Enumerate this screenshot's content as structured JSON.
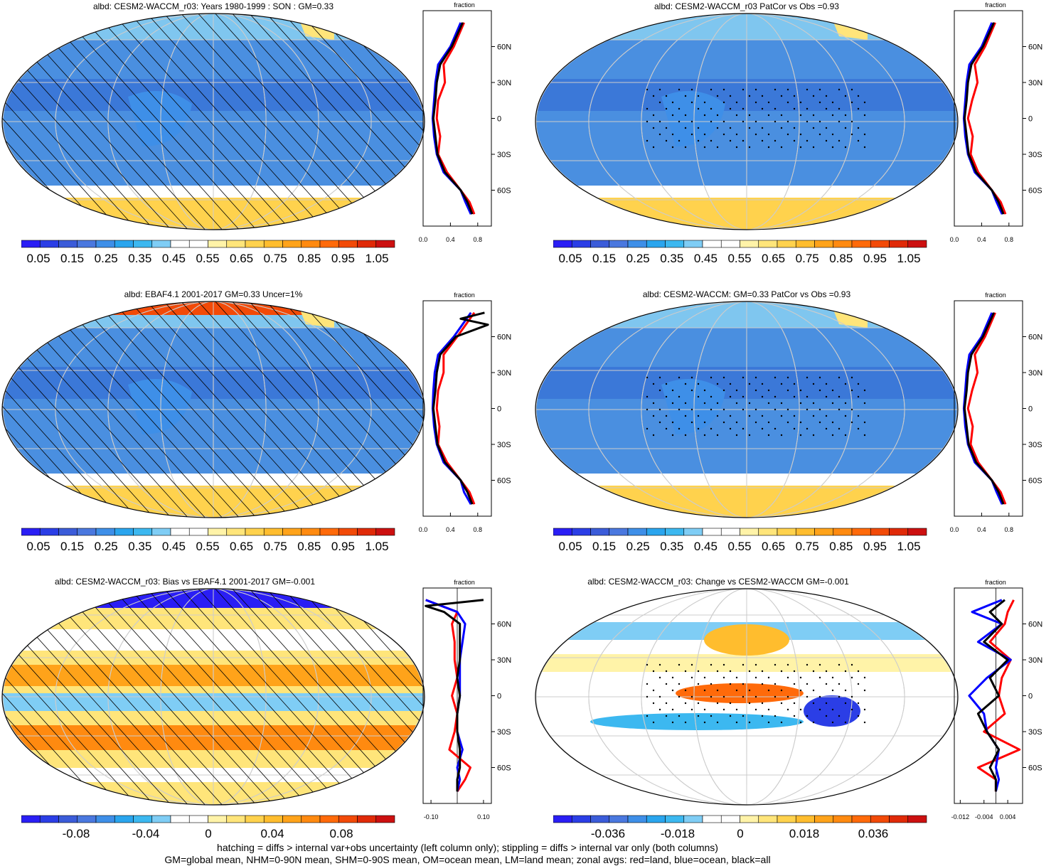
{
  "panels": [
    {
      "id": "p1",
      "title": "albd: CESM2-WACCM_r03: Years 1980-1999 : SON : GM=0.33",
      "style": "abs",
      "hatch": true
    },
    {
      "id": "p2",
      "title": "albd: CESM2-WACCM_r03 PatCor vs Obs =0.93",
      "style": "abs",
      "hatch": false
    },
    {
      "id": "p3",
      "title": "albd: EBAF4.1 2001-2017 GM=0.33 Uncer=1%",
      "style": "abs",
      "hatch": true
    },
    {
      "id": "p4",
      "title": "albd: CESM2-WACCM: GM=0.33 PatCor vs Obs =0.93",
      "style": "abs",
      "hatch": false
    },
    {
      "id": "p5",
      "title": "albd: CESM2-WACCM_r03: Bias vs EBAF4.1 2001-2017  GM=-0.001",
      "style": "bias",
      "hatch": true
    },
    {
      "id": "p6",
      "title": "albd: CESM2-WACCM_r03: Change vs CESM2-WACCM GM=-0.001",
      "style": "change",
      "hatch": false
    }
  ],
  "zonal_axis": {
    "title": "fraction",
    "lat_ticks": [
      "60N",
      "30N",
      "0",
      "30S",
      "60S"
    ],
    "lat_values": [
      60,
      30,
      0,
      -30,
      -60
    ],
    "abs_ticks": [
      "0.0",
      "0.4",
      "0.8"
    ],
    "bias_ticks": [
      "-0.10",
      "0.10"
    ],
    "change_ticks": [
      "-0.012",
      "-0.004",
      "0.004"
    ]
  },
  "colorbars": {
    "abs_labels": [
      "0.05",
      "0.15",
      "0.25",
      "0.35",
      "0.45",
      "0.55",
      "0.65",
      "0.75",
      "0.85",
      "0.95",
      "1.05"
    ],
    "bias_labels": [
      "-0.08",
      "-0.04",
      "0",
      "0.04",
      "0.08"
    ],
    "change_labels": [
      "-0.036",
      "-0.018",
      "0",
      "0.018",
      "0.036"
    ],
    "colors": [
      "#2a1ef5",
      "#2b3ee6",
      "#3b5cd9",
      "#4a78df",
      "#3e8fe8",
      "#2aa5ee",
      "#3cb8f0",
      "#7fcdf5",
      "#ffffff",
      "#ffffff",
      "#fff3a8",
      "#ffe57a",
      "#ffd24d",
      "#ffbd2e",
      "#ffa31a",
      "#ff8a10",
      "#ff6a0a",
      "#f24a08",
      "#e02a08",
      "#cc1010"
    ]
  },
  "chart_data": [
    {
      "type": "heatmap",
      "panel": "p1",
      "map": "global albedo field",
      "zonal_series": [
        {
          "name": "land",
          "color": "#ff0000",
          "lat": [
            80,
            60,
            45,
            30,
            15,
            0,
            -15,
            -30,
            -45,
            -60,
            -70,
            -80
          ],
          "values": [
            0.6,
            0.45,
            0.3,
            0.32,
            0.22,
            0.2,
            0.25,
            0.22,
            0.35,
            0.55,
            0.68,
            0.75
          ]
        },
        {
          "name": "ocean",
          "color": "#0000ff",
          "lat": [
            80,
            60,
            45,
            30,
            15,
            0,
            -15,
            -30,
            -45,
            -60,
            -70,
            -80
          ],
          "values": [
            0.55,
            0.4,
            0.22,
            0.18,
            0.16,
            0.14,
            0.16,
            0.2,
            0.3,
            0.55,
            0.62,
            0.7
          ]
        },
        {
          "name": "all",
          "color": "#000000",
          "lat": [
            80,
            60,
            45,
            30,
            15,
            0,
            -15,
            -30,
            -45,
            -60,
            -70,
            -80
          ],
          "values": [
            0.58,
            0.42,
            0.25,
            0.2,
            0.18,
            0.15,
            0.18,
            0.21,
            0.32,
            0.55,
            0.65,
            0.72
          ]
        }
      ]
    },
    {
      "type": "heatmap",
      "panel": "p2",
      "map": "global albedo field",
      "zonal_series": [
        {
          "name": "land",
          "color": "#ff0000",
          "lat": [
            80,
            60,
            45,
            30,
            15,
            0,
            -15,
            -30,
            -45,
            -60,
            -70,
            -80
          ],
          "values": [
            0.6,
            0.45,
            0.3,
            0.34,
            0.26,
            0.2,
            0.27,
            0.24,
            0.35,
            0.55,
            0.68,
            0.75
          ]
        },
        {
          "name": "ocean",
          "color": "#0000ff",
          "lat": [
            80,
            60,
            45,
            30,
            15,
            0,
            -15,
            -30,
            -45,
            -60,
            -70,
            -80
          ],
          "values": [
            0.55,
            0.4,
            0.22,
            0.18,
            0.16,
            0.14,
            0.16,
            0.2,
            0.3,
            0.55,
            0.62,
            0.7
          ]
        },
        {
          "name": "all",
          "color": "#000000",
          "lat": [
            80,
            60,
            45,
            30,
            15,
            0,
            -15,
            -30,
            -45,
            -60,
            -70,
            -80
          ],
          "values": [
            0.58,
            0.42,
            0.25,
            0.2,
            0.18,
            0.15,
            0.18,
            0.21,
            0.32,
            0.55,
            0.65,
            0.72
          ]
        }
      ]
    },
    {
      "type": "heatmap",
      "panel": "p3",
      "map": "global albedo field",
      "zonal_series": [
        {
          "name": "land",
          "color": "#ff0000",
          "lat": [
            80,
            60,
            45,
            30,
            15,
            0,
            -15,
            -30,
            -45,
            -60,
            -70,
            -80
          ],
          "values": [
            0.75,
            0.5,
            0.3,
            0.3,
            0.22,
            0.2,
            0.24,
            0.22,
            0.35,
            0.55,
            0.68,
            0.75
          ]
        },
        {
          "name": "ocean",
          "color": "#0000ff",
          "lat": [
            80,
            60,
            45,
            30,
            15,
            0,
            -15,
            -30,
            -45,
            -60,
            -70,
            -80
          ],
          "values": [
            0.7,
            0.45,
            0.22,
            0.17,
            0.15,
            0.14,
            0.16,
            0.2,
            0.3,
            0.55,
            0.6,
            0.7
          ]
        },
        {
          "name": "all",
          "color": "#000000",
          "lat": [
            80,
            75,
            70,
            60,
            45,
            30,
            15,
            0,
            -15,
            -30,
            -45,
            -60,
            -70,
            -80
          ],
          "values": [
            0.9,
            0.55,
            0.95,
            0.48,
            0.25,
            0.2,
            0.18,
            0.15,
            0.18,
            0.21,
            0.32,
            0.55,
            0.65,
            0.72
          ]
        }
      ]
    },
    {
      "type": "heatmap",
      "panel": "p4",
      "map": "global albedo field",
      "zonal_series": [
        {
          "name": "land",
          "color": "#ff0000",
          "lat": [
            80,
            60,
            45,
            30,
            15,
            0,
            -15,
            -30,
            -45,
            -60,
            -70,
            -80
          ],
          "values": [
            0.6,
            0.45,
            0.3,
            0.34,
            0.26,
            0.2,
            0.27,
            0.24,
            0.35,
            0.55,
            0.68,
            0.75
          ]
        },
        {
          "name": "ocean",
          "color": "#0000ff",
          "lat": [
            80,
            60,
            45,
            30,
            15,
            0,
            -15,
            -30,
            -45,
            -60,
            -70,
            -80
          ],
          "values": [
            0.55,
            0.4,
            0.22,
            0.18,
            0.16,
            0.14,
            0.16,
            0.2,
            0.3,
            0.55,
            0.62,
            0.7
          ]
        },
        {
          "name": "all",
          "color": "#000000",
          "lat": [
            80,
            60,
            45,
            30,
            15,
            0,
            -15,
            -30,
            -45,
            -60,
            -70,
            -80
          ],
          "values": [
            0.58,
            0.42,
            0.25,
            0.2,
            0.18,
            0.15,
            0.18,
            0.21,
            0.32,
            0.55,
            0.65,
            0.72
          ]
        }
      ]
    },
    {
      "type": "heatmap",
      "panel": "p5",
      "map": "global albedo bias field",
      "zonal_series": [
        {
          "name": "land",
          "color": "#ff0000",
          "lat": [
            80,
            70,
            60,
            45,
            30,
            15,
            0,
            -15,
            -30,
            -45,
            -60,
            -70,
            -80
          ],
          "values": [
            -0.12,
            0.0,
            -0.02,
            -0.01,
            -0.01,
            0.0,
            -0.02,
            0.0,
            -0.01,
            -0.03,
            0.05,
            0.03,
            0.0
          ]
        },
        {
          "name": "ocean",
          "color": "#0000ff",
          "lat": [
            80,
            70,
            60,
            45,
            30,
            15,
            0,
            -15,
            -30,
            -45,
            -60,
            -70,
            -80
          ],
          "values": [
            -0.12,
            0.0,
            0.03,
            0.02,
            0.01,
            0.01,
            0.01,
            0.0,
            0.0,
            0.02,
            0.0,
            0.01,
            0.0
          ]
        },
        {
          "name": "all",
          "color": "#000000",
          "lat": [
            80,
            75,
            70,
            60,
            45,
            30,
            15,
            0,
            -15,
            -30,
            -45,
            -60,
            -70,
            -80
          ],
          "values": [
            0.1,
            -0.12,
            -0.05,
            0.01,
            0.01,
            0.01,
            0.0,
            0.01,
            0.0,
            0.0,
            0.01,
            0.01,
            0.0,
            0.0
          ]
        }
      ]
    },
    {
      "type": "heatmap",
      "panel": "p6",
      "map": "global albedo change field",
      "zonal_series": [
        {
          "name": "land",
          "color": "#ff0000",
          "lat": [
            80,
            70,
            60,
            45,
            30,
            15,
            0,
            -15,
            -30,
            -45,
            -60,
            -70,
            -80
          ],
          "values": [
            0.006,
            0.004,
            0.003,
            -0.002,
            0.005,
            0.002,
            0.001,
            0.003,
            -0.004,
            0.008,
            -0.006,
            0.0,
            0.0
          ]
        },
        {
          "name": "ocean",
          "color": "#0000ff",
          "lat": [
            80,
            70,
            60,
            45,
            30,
            15,
            0,
            -15,
            -30,
            -45,
            -60,
            -70,
            -80
          ],
          "values": [
            0.002,
            -0.008,
            0.002,
            -0.006,
            0.005,
            -0.003,
            -0.009,
            -0.004,
            -0.003,
            0.001,
            0.0,
            0.001,
            0.0
          ]
        },
        {
          "name": "all",
          "color": "#000000",
          "lat": [
            80,
            70,
            60,
            45,
            30,
            15,
            0,
            -15,
            -30,
            -45,
            -60,
            -70,
            -80
          ],
          "values": [
            0.003,
            -0.002,
            0.002,
            -0.004,
            0.004,
            -0.002,
            0.001,
            -0.006,
            -0.003,
            0.001,
            -0.002,
            0.0,
            0.0
          ]
        }
      ]
    }
  ],
  "footer": {
    "line1": "hatching = diffs > internal var+obs uncertainty (left column only); stippling = diffs > internal var only (both columns)",
    "line2": "GM=global mean, NHM=0-90N mean, SHM=0-90S mean, OM=ocean mean, LM=land mean; zonal avgs: red=land, blue=ocean, black=all"
  }
}
